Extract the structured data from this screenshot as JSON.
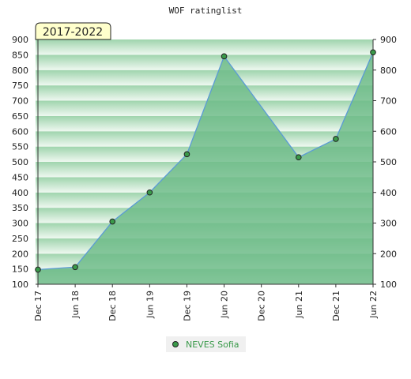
{
  "chart_data": {
    "type": "area",
    "title": "WOF ratinglist",
    "period_label": "2017-2022",
    "categories": [
      "Dec 17",
      "Jun 18",
      "Dec 18",
      "Jun 19",
      "Dec 19",
      "Jun 20",
      "Dec 20",
      "Jun 21",
      "Dec 21",
      "Jun 22"
    ],
    "series": [
      {
        "name": "NEVES Sofia",
        "values": [
          148,
          156,
          305,
          400,
          525,
          845,
          null,
          515,
          575,
          858
        ]
      }
    ],
    "ylim": [
      100,
      900
    ],
    "y_ticks": [
      100,
      150,
      200,
      250,
      300,
      350,
      400,
      450,
      500,
      550,
      600,
      650,
      700,
      750,
      800,
      850,
      900
    ],
    "y_ticks_right": [
      100,
      200,
      300,
      400,
      500,
      600,
      700,
      800,
      900
    ],
    "legend_position": "bottom-center",
    "colors": {
      "line": "#5b9bd5",
      "area": "#6dbb87",
      "marker": "#3a9a4a",
      "band_dark": "#9fd4ad",
      "band_light": "#eef8f0",
      "legend_text": "#3a9a4a"
    }
  }
}
